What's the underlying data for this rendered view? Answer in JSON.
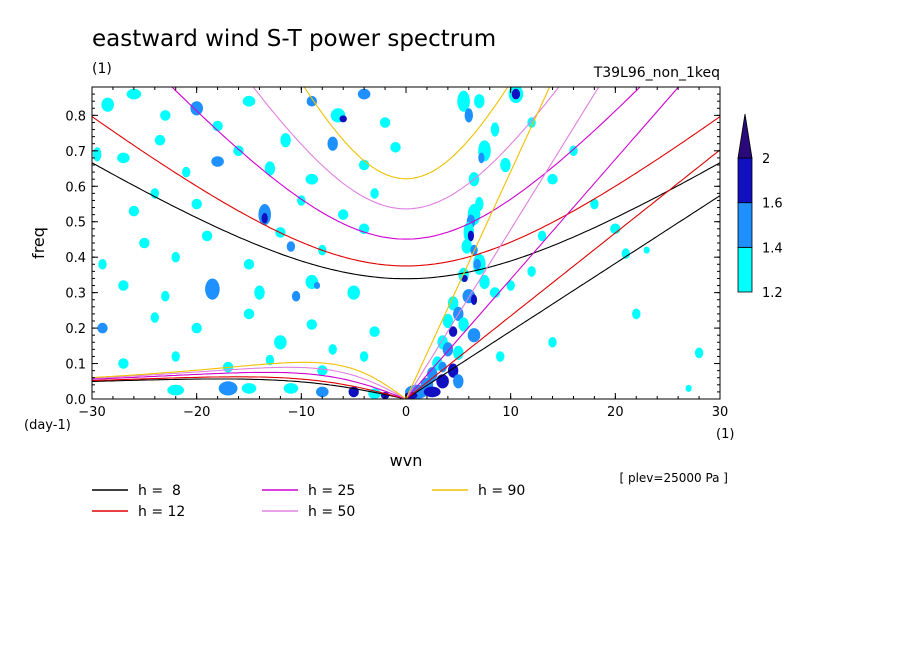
{
  "chart_data": {
    "type": "heatmap",
    "title": "eastward wind S-T power spectrum",
    "subtitle_left": "(1)",
    "subtitle_right": "T39L96_non_1keq",
    "xlabel": "wvn",
    "ylabel": "freq",
    "x_unit": "(1)",
    "y_unit": "(day-1)",
    "xlim": [
      -30,
      30
    ],
    "ylim": [
      0,
      0.88
    ],
    "x_ticks": [
      -30,
      -20,
      -10,
      0,
      10,
      20,
      30
    ],
    "x_tick_labels": [
      "−30",
      "−20",
      "−10",
      "0",
      "10",
      "20",
      "30"
    ],
    "y_ticks": [
      0,
      0.1,
      0.2,
      0.3,
      0.4,
      0.5,
      0.6,
      0.7,
      0.8
    ],
    "y_tick_labels": [
      "0.0",
      "0.1",
      "0.2",
      "0.3",
      "0.4",
      "0.5",
      "0.6",
      "0.7",
      "0.8"
    ],
    "note": "[ plev=25000 Pa ]",
    "colorbar": {
      "levels": [
        1.2,
        1.4,
        1.6,
        2
      ],
      "labels": [
        "1.2",
        "1.4",
        "1.6",
        "2"
      ],
      "colors": [
        "#00ffff",
        "#1e90ff",
        "#1010c0",
        "#2a0a7a"
      ]
    },
    "series": [
      {
        "name": "h =  8",
        "label": "h =  8",
        "h": 8,
        "color": "#000000"
      },
      {
        "name": "h = 12",
        "label": "h = 12",
        "h": 12,
        "color": "#e00000"
      },
      {
        "name": "h = 25",
        "label": "h = 25",
        "h": 25,
        "color": "#d000d0"
      },
      {
        "name": "h = 50",
        "label": "h = 50",
        "h": 50,
        "color": "#e080e0"
      },
      {
        "name": "h = 90",
        "label": "h = 90",
        "h": 90,
        "color": "#f0c000"
      }
    ],
    "spectrum_blobs": [
      [
        -28.5,
        0.83,
        0.6,
        0.02,
        1
      ],
      [
        -26,
        0.86,
        0.7,
        0.015,
        1
      ],
      [
        -23,
        0.8,
        0.5,
        0.015,
        1
      ],
      [
        -20,
        0.82,
        0.6,
        0.02,
        2
      ],
      [
        -18,
        0.77,
        0.5,
        0.015,
        1
      ],
      [
        -15,
        0.84,
        0.6,
        0.015,
        1
      ],
      [
        -11.5,
        0.73,
        0.5,
        0.02,
        1
      ],
      [
        -9,
        0.84,
        0.5,
        0.015,
        2
      ],
      [
        -6.5,
        0.8,
        0.7,
        0.02,
        1
      ],
      [
        -6,
        0.79,
        0.35,
        0.01,
        3
      ],
      [
        -4,
        0.86,
        0.6,
        0.015,
        2
      ],
      [
        -2,
        0.78,
        0.5,
        0.015,
        1
      ],
      [
        -29.5,
        0.69,
        0.4,
        0.02,
        1
      ],
      [
        -27,
        0.68,
        0.6,
        0.015,
        1
      ],
      [
        -23.5,
        0.73,
        0.5,
        0.015,
        1
      ],
      [
        -21,
        0.64,
        0.4,
        0.015,
        1
      ],
      [
        -18,
        0.67,
        0.6,
        0.015,
        2
      ],
      [
        -16,
        0.7,
        0.5,
        0.015,
        1
      ],
      [
        -13,
        0.65,
        0.5,
        0.02,
        1
      ],
      [
        -9,
        0.62,
        0.6,
        0.015,
        1
      ],
      [
        -7,
        0.72,
        0.5,
        0.02,
        2
      ],
      [
        -4,
        0.66,
        0.5,
        0.015,
        1
      ],
      [
        -1,
        0.71,
        0.5,
        0.015,
        1
      ],
      [
        -26,
        0.53,
        0.5,
        0.015,
        1
      ],
      [
        -24,
        0.58,
        0.4,
        0.015,
        1
      ],
      [
        -20,
        0.55,
        0.5,
        0.015,
        1
      ],
      [
        -13.5,
        0.52,
        0.6,
        0.03,
        2
      ],
      [
        -13.5,
        0.51,
        0.3,
        0.015,
        3
      ],
      [
        -12,
        0.47,
        0.5,
        0.015,
        1
      ],
      [
        -10,
        0.56,
        0.4,
        0.015,
        1
      ],
      [
        -6,
        0.52,
        0.5,
        0.015,
        1
      ],
      [
        -3,
        0.58,
        0.4,
        0.015,
        1
      ],
      [
        -25,
        0.44,
        0.5,
        0.015,
        1
      ],
      [
        -22,
        0.4,
        0.4,
        0.015,
        1
      ],
      [
        -19,
        0.46,
        0.5,
        0.015,
        1
      ],
      [
        -15,
        0.38,
        0.5,
        0.015,
        1
      ],
      [
        -11,
        0.43,
        0.4,
        0.015,
        2
      ],
      [
        -8,
        0.42,
        0.4,
        0.015,
        1
      ],
      [
        -4,
        0.48,
        0.5,
        0.015,
        1
      ],
      [
        -29,
        0.38,
        0.4,
        0.015,
        1
      ],
      [
        -27,
        0.32,
        0.5,
        0.015,
        1
      ],
      [
        -23,
        0.29,
        0.4,
        0.015,
        1
      ],
      [
        -18.5,
        0.31,
        0.7,
        0.03,
        2
      ],
      [
        -14,
        0.3,
        0.5,
        0.02,
        1
      ],
      [
        -10.5,
        0.29,
        0.4,
        0.015,
        2
      ],
      [
        -9,
        0.33,
        0.6,
        0.02,
        1
      ],
      [
        -8.5,
        0.32,
        0.3,
        0.01,
        2
      ],
      [
        -5,
        0.3,
        0.6,
        0.02,
        1
      ],
      [
        -29,
        0.2,
        0.5,
        0.015,
        2
      ],
      [
        -24,
        0.23,
        0.4,
        0.015,
        1
      ],
      [
        -20,
        0.2,
        0.5,
        0.015,
        1
      ],
      [
        -15,
        0.24,
        0.5,
        0.015,
        1
      ],
      [
        -12,
        0.16,
        0.6,
        0.02,
        1
      ],
      [
        -9,
        0.21,
        0.5,
        0.015,
        1
      ],
      [
        -7,
        0.14,
        0.4,
        0.015,
        1
      ],
      [
        -3,
        0.19,
        0.5,
        0.015,
        1
      ],
      [
        -27,
        0.1,
        0.5,
        0.015,
        1
      ],
      [
        -22,
        0.12,
        0.4,
        0.015,
        1
      ],
      [
        -17,
        0.09,
        0.5,
        0.015,
        1
      ],
      [
        -13,
        0.11,
        0.4,
        0.015,
        1
      ],
      [
        -8,
        0.08,
        0.5,
        0.015,
        1
      ],
      [
        -4,
        0.12,
        0.4,
        0.015,
        1
      ],
      [
        -22,
        0.025,
        0.8,
        0.015,
        1
      ],
      [
        -17,
        0.03,
        0.9,
        0.02,
        2
      ],
      [
        -15,
        0.03,
        0.7,
        0.015,
        1
      ],
      [
        -11,
        0.03,
        0.7,
        0.015,
        1
      ],
      [
        -8,
        0.02,
        0.6,
        0.015,
        2
      ],
      [
        -5,
        0.02,
        0.5,
        0.015,
        3
      ],
      [
        -3,
        0.015,
        0.6,
        0.015,
        1
      ],
      [
        -2,
        0.01,
        0.4,
        0.01,
        3
      ],
      [
        5.5,
        0.84,
        0.6,
        0.03,
        1
      ],
      [
        6,
        0.8,
        0.4,
        0.02,
        2
      ],
      [
        7,
        0.84,
        0.5,
        0.02,
        1
      ],
      [
        10.5,
        0.86,
        0.7,
        0.025,
        1
      ],
      [
        10.5,
        0.86,
        0.4,
        0.015,
        3
      ],
      [
        8.5,
        0.76,
        0.4,
        0.02,
        1
      ],
      [
        7.5,
        0.7,
        0.6,
        0.03,
        1
      ],
      [
        7.2,
        0.68,
        0.3,
        0.015,
        2
      ],
      [
        9.5,
        0.66,
        0.5,
        0.02,
        1
      ],
      [
        6.5,
        0.62,
        0.5,
        0.02,
        1
      ],
      [
        7,
        0.55,
        0.4,
        0.02,
        1
      ],
      [
        6.5,
        0.52,
        0.6,
        0.03,
        1
      ],
      [
        6.2,
        0.5,
        0.4,
        0.02,
        2
      ],
      [
        6,
        0.47,
        0.5,
        0.03,
        1
      ],
      [
        6.2,
        0.46,
        0.3,
        0.015,
        3
      ],
      [
        5.8,
        0.43,
        0.5,
        0.02,
        1
      ],
      [
        6.5,
        0.42,
        0.35,
        0.015,
        2
      ],
      [
        7,
        0.38,
        0.6,
        0.03,
        1
      ],
      [
        6.8,
        0.38,
        0.35,
        0.015,
        2
      ],
      [
        5.5,
        0.35,
        0.5,
        0.02,
        1
      ],
      [
        5.6,
        0.34,
        0.3,
        0.01,
        3
      ],
      [
        7.5,
        0.33,
        0.5,
        0.02,
        1
      ],
      [
        6,
        0.29,
        0.6,
        0.02,
        2
      ],
      [
        6.5,
        0.28,
        0.3,
        0.015,
        3
      ],
      [
        4.5,
        0.27,
        0.5,
        0.02,
        1
      ],
      [
        8.5,
        0.3,
        0.5,
        0.015,
        1
      ],
      [
        10,
        0.32,
        0.4,
        0.015,
        1
      ],
      [
        12,
        0.36,
        0.4,
        0.015,
        1
      ],
      [
        5,
        0.24,
        0.5,
        0.02,
        2
      ],
      [
        4,
        0.22,
        0.5,
        0.02,
        1
      ],
      [
        5.5,
        0.21,
        0.5,
        0.02,
        1
      ],
      [
        4.5,
        0.19,
        0.4,
        0.015,
        3
      ],
      [
        6.5,
        0.18,
        0.6,
        0.02,
        2
      ],
      [
        3.5,
        0.16,
        0.5,
        0.02,
        1
      ],
      [
        4,
        0.14,
        0.5,
        0.02,
        2
      ],
      [
        5,
        0.13,
        0.5,
        0.02,
        1
      ],
      [
        3,
        0.1,
        0.5,
        0.02,
        1
      ],
      [
        3.5,
        0.09,
        0.4,
        0.015,
        2
      ],
      [
        4.5,
        0.08,
        0.5,
        0.02,
        3
      ],
      [
        2.5,
        0.07,
        0.5,
        0.02,
        2
      ],
      [
        3.5,
        0.05,
        0.6,
        0.02,
        3
      ],
      [
        5,
        0.05,
        0.5,
        0.02,
        2
      ],
      [
        2,
        0.04,
        0.6,
        0.02,
        2
      ],
      [
        1,
        0.02,
        1.1,
        0.02,
        2
      ],
      [
        2.5,
        0.02,
        0.8,
        0.015,
        3
      ],
      [
        0.5,
        0.01,
        0.6,
        0.01,
        3
      ],
      [
        14,
        0.62,
        0.5,
        0.015,
        1
      ],
      [
        18,
        0.55,
        0.4,
        0.015,
        1
      ],
      [
        20,
        0.48,
        0.5,
        0.015,
        1
      ],
      [
        21,
        0.41,
        0.4,
        0.015,
        1
      ],
      [
        16,
        0.7,
        0.4,
        0.015,
        1
      ],
      [
        12,
        0.78,
        0.4,
        0.015,
        1
      ],
      [
        9,
        0.12,
        0.4,
        0.015,
        1
      ],
      [
        14,
        0.16,
        0.4,
        0.015,
        1
      ],
      [
        22,
        0.24,
        0.4,
        0.015,
        1
      ],
      [
        28,
        0.13,
        0.4,
        0.015,
        1
      ],
      [
        27,
        0.03,
        0.3,
        0.01,
        1
      ],
      [
        23,
        0.42,
        0.3,
        0.01,
        1
      ],
      [
        13,
        0.46,
        0.4,
        0.015,
        1
      ]
    ]
  },
  "legend": {
    "items": [
      {
        "label": "h =  8",
        "color": "#000000"
      },
      {
        "label": "h = 12",
        "color": "#e00000"
      },
      {
        "label": "h = 25",
        "color": "#d000d0"
      },
      {
        "label": "h = 50",
        "color": "#e080e0"
      },
      {
        "label": "h = 90",
        "color": "#f0c000"
      }
    ]
  }
}
